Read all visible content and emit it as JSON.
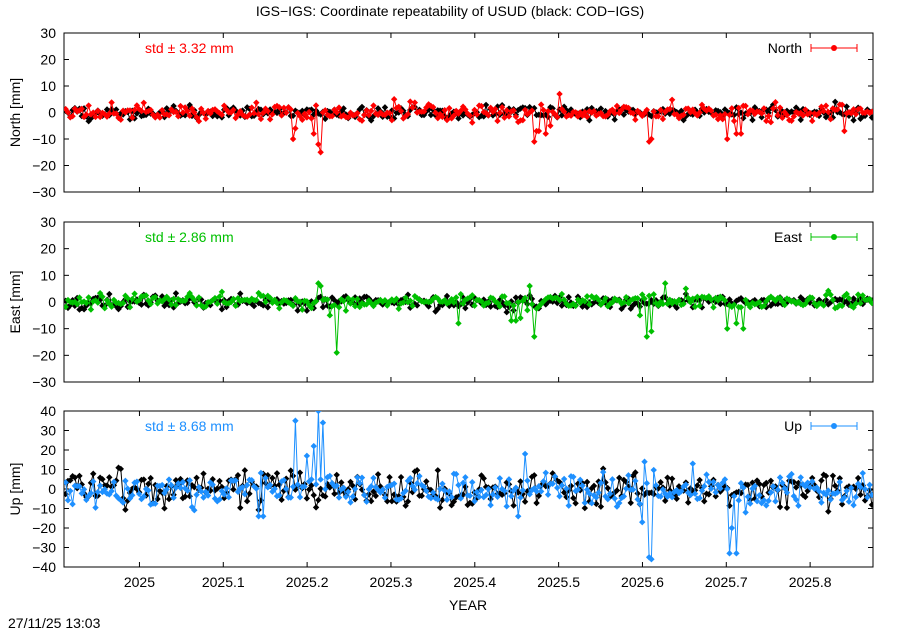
{
  "title": "IGS−IGS: Coordinate repeatability of USUD (black: COD−IGS)",
  "timestamp": "27/11/25 13:03",
  "xlabel": "YEAR",
  "chart_data": [
    {
      "type": "line",
      "component": "north",
      "ylabel": "North [mm]",
      "legend": "North",
      "legend_position": "top-right",
      "std_text": "std ± 3.32 mm",
      "color": "#ff0000",
      "reference_color": "#000000",
      "ylim": [
        -30,
        30
      ],
      "yticks": [
        30,
        20,
        10,
        0,
        -10,
        -20,
        -30
      ],
      "ytick_labels": [
        "30",
        "20",
        "10",
        "0",
        "−10",
        "−20",
        "−30"
      ],
      "xlim": [
        2024.91,
        2025.875
      ],
      "std": 3.32,
      "seed": 11,
      "spikes": [
        [
          2025.183,
          -10
        ],
        [
          2025.186,
          -6
        ],
        [
          2025.217,
          -15
        ],
        [
          2025.214,
          -12
        ],
        [
          2025.209,
          -8
        ],
        [
          2025.47,
          -11
        ],
        [
          2025.475,
          -7
        ],
        [
          2025.485,
          -8
        ],
        [
          2025.49,
          -5
        ],
        [
          2025.607,
          -11
        ],
        [
          2025.611,
          -10
        ],
        [
          2025.7,
          -10
        ],
        [
          2025.712,
          -8
        ],
        [
          2025.718,
          -8
        ],
        [
          2025.842,
          -7
        ],
        [
          2025.502,
          7
        ],
        [
          2025.303,
          5
        ]
      ],
      "ref_std": 1.3
    },
    {
      "type": "line",
      "component": "east",
      "ylabel": "East [mm]",
      "legend": "East",
      "legend_position": "top-right",
      "std_text": "std ± 2.86 mm",
      "color": "#00c000",
      "reference_color": "#000000",
      "ylim": [
        -30,
        30
      ],
      "yticks": [
        30,
        20,
        10,
        0,
        -10,
        -20,
        -30
      ],
      "ytick_labels": [
        "30",
        "20",
        "10",
        "0",
        "−10",
        "−20",
        "−30"
      ],
      "xlim": [
        2024.91,
        2025.875
      ],
      "std": 2.86,
      "seed": 23,
      "spikes": [
        [
          2025.235,
          -19
        ],
        [
          2025.213,
          7
        ],
        [
          2025.217,
          6
        ],
        [
          2025.228,
          -5
        ],
        [
          2025.38,
          -8
        ],
        [
          2025.45,
          -7
        ],
        [
          2025.455,
          -6
        ],
        [
          2025.472,
          -13
        ],
        [
          2025.466,
          6
        ],
        [
          2025.443,
          -7
        ],
        [
          2025.606,
          -13
        ],
        [
          2025.61,
          -11
        ],
        [
          2025.598,
          -5
        ],
        [
          2025.627,
          7
        ],
        [
          2025.653,
          5
        ],
        [
          2025.7,
          -10
        ],
        [
          2025.713,
          -8
        ],
        [
          2025.72,
          -10
        ]
      ],
      "ref_std": 1.3
    },
    {
      "type": "line",
      "component": "up",
      "ylabel": "Up [mm]",
      "legend": "Up",
      "legend_position": "top-right",
      "std_text": "std ± 8.68 mm",
      "color": "#1e90ff",
      "reference_color": "#000000",
      "ylim": [
        -40,
        40
      ],
      "yticks": [
        40,
        30,
        20,
        10,
        0,
        -10,
        -20,
        -30,
        -40
      ],
      "ytick_labels": [
        "40",
        "30",
        "20",
        "10",
        "0",
        "−10",
        "−20",
        "−30",
        "−40"
      ],
      "xlim": [
        2024.91,
        2025.875
      ],
      "std": 8.68,
      "seed": 37,
      "spikes": [
        [
          2025.187,
          35
        ],
        [
          2025.214,
          40
        ],
        [
          2025.218,
          34
        ],
        [
          2025.208,
          22
        ],
        [
          2025.199,
          17
        ],
        [
          2025.142,
          -14
        ],
        [
          2025.148,
          -14
        ],
        [
          2025.607,
          -35
        ],
        [
          2025.61,
          -36
        ],
        [
          2025.6,
          -17
        ],
        [
          2025.703,
          -33
        ],
        [
          2025.712,
          -33
        ],
        [
          2025.706,
          -20
        ],
        [
          2025.722,
          -12
        ],
        [
          2025.461,
          18
        ],
        [
          2025.452,
          -14
        ],
        [
          2025.603,
          14
        ],
        [
          2025.66,
          13
        ]
      ],
      "ref_std": 4.5
    }
  ],
  "xticks": [
    2025,
    2025.1,
    2025.2,
    2025.3,
    2025.4,
    2025.5,
    2025.6,
    2025.7,
    2025.8
  ],
  "xtick_labels": [
    "2025",
    "2025.1",
    "2025.2",
    "2025.3",
    "2025.4",
    "2025.5",
    "2025.6",
    "2025.7",
    "2025.8"
  ]
}
